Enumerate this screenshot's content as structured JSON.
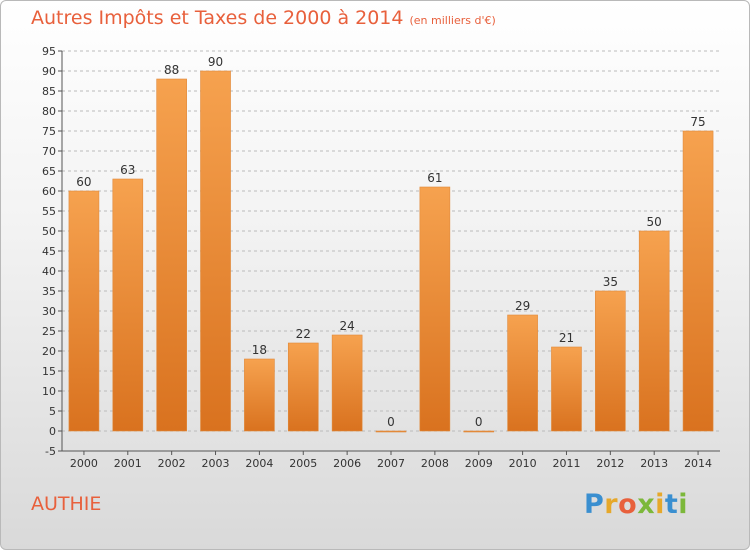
{
  "header": {
    "title": "Autres Impôts et Taxes de 2000 à 2014",
    "subtitle": "(en milliers d'€)"
  },
  "footer": {
    "place": "AUTHIE",
    "logo": "Proxiti"
  },
  "colors": {
    "title": "#e8603c",
    "bar_light": "#f6a24f",
    "bar_dark": "#d9721f",
    "axis": "#555555",
    "grid": "#bbbbbb"
  },
  "chart_data": {
    "type": "bar",
    "title": "Autres Impôts et Taxes de 2000 à 2014",
    "subtitle": "(en milliers d'€)",
    "categories": [
      "2000",
      "2001",
      "2002",
      "2003",
      "2004",
      "2005",
      "2006",
      "2007",
      "2008",
      "2009",
      "2010",
      "2011",
      "2012",
      "2013",
      "2014"
    ],
    "values": [
      60,
      63,
      88,
      90,
      18,
      22,
      24,
      0,
      61,
      0,
      29,
      21,
      35,
      50,
      75
    ],
    "ylim": [
      -5,
      95
    ],
    "yticks": [
      -5,
      0,
      5,
      10,
      15,
      20,
      25,
      30,
      35,
      40,
      45,
      50,
      55,
      60,
      65,
      70,
      75,
      80,
      85,
      90,
      95
    ],
    "grid": true,
    "xlabel": "",
    "ylabel": ""
  }
}
